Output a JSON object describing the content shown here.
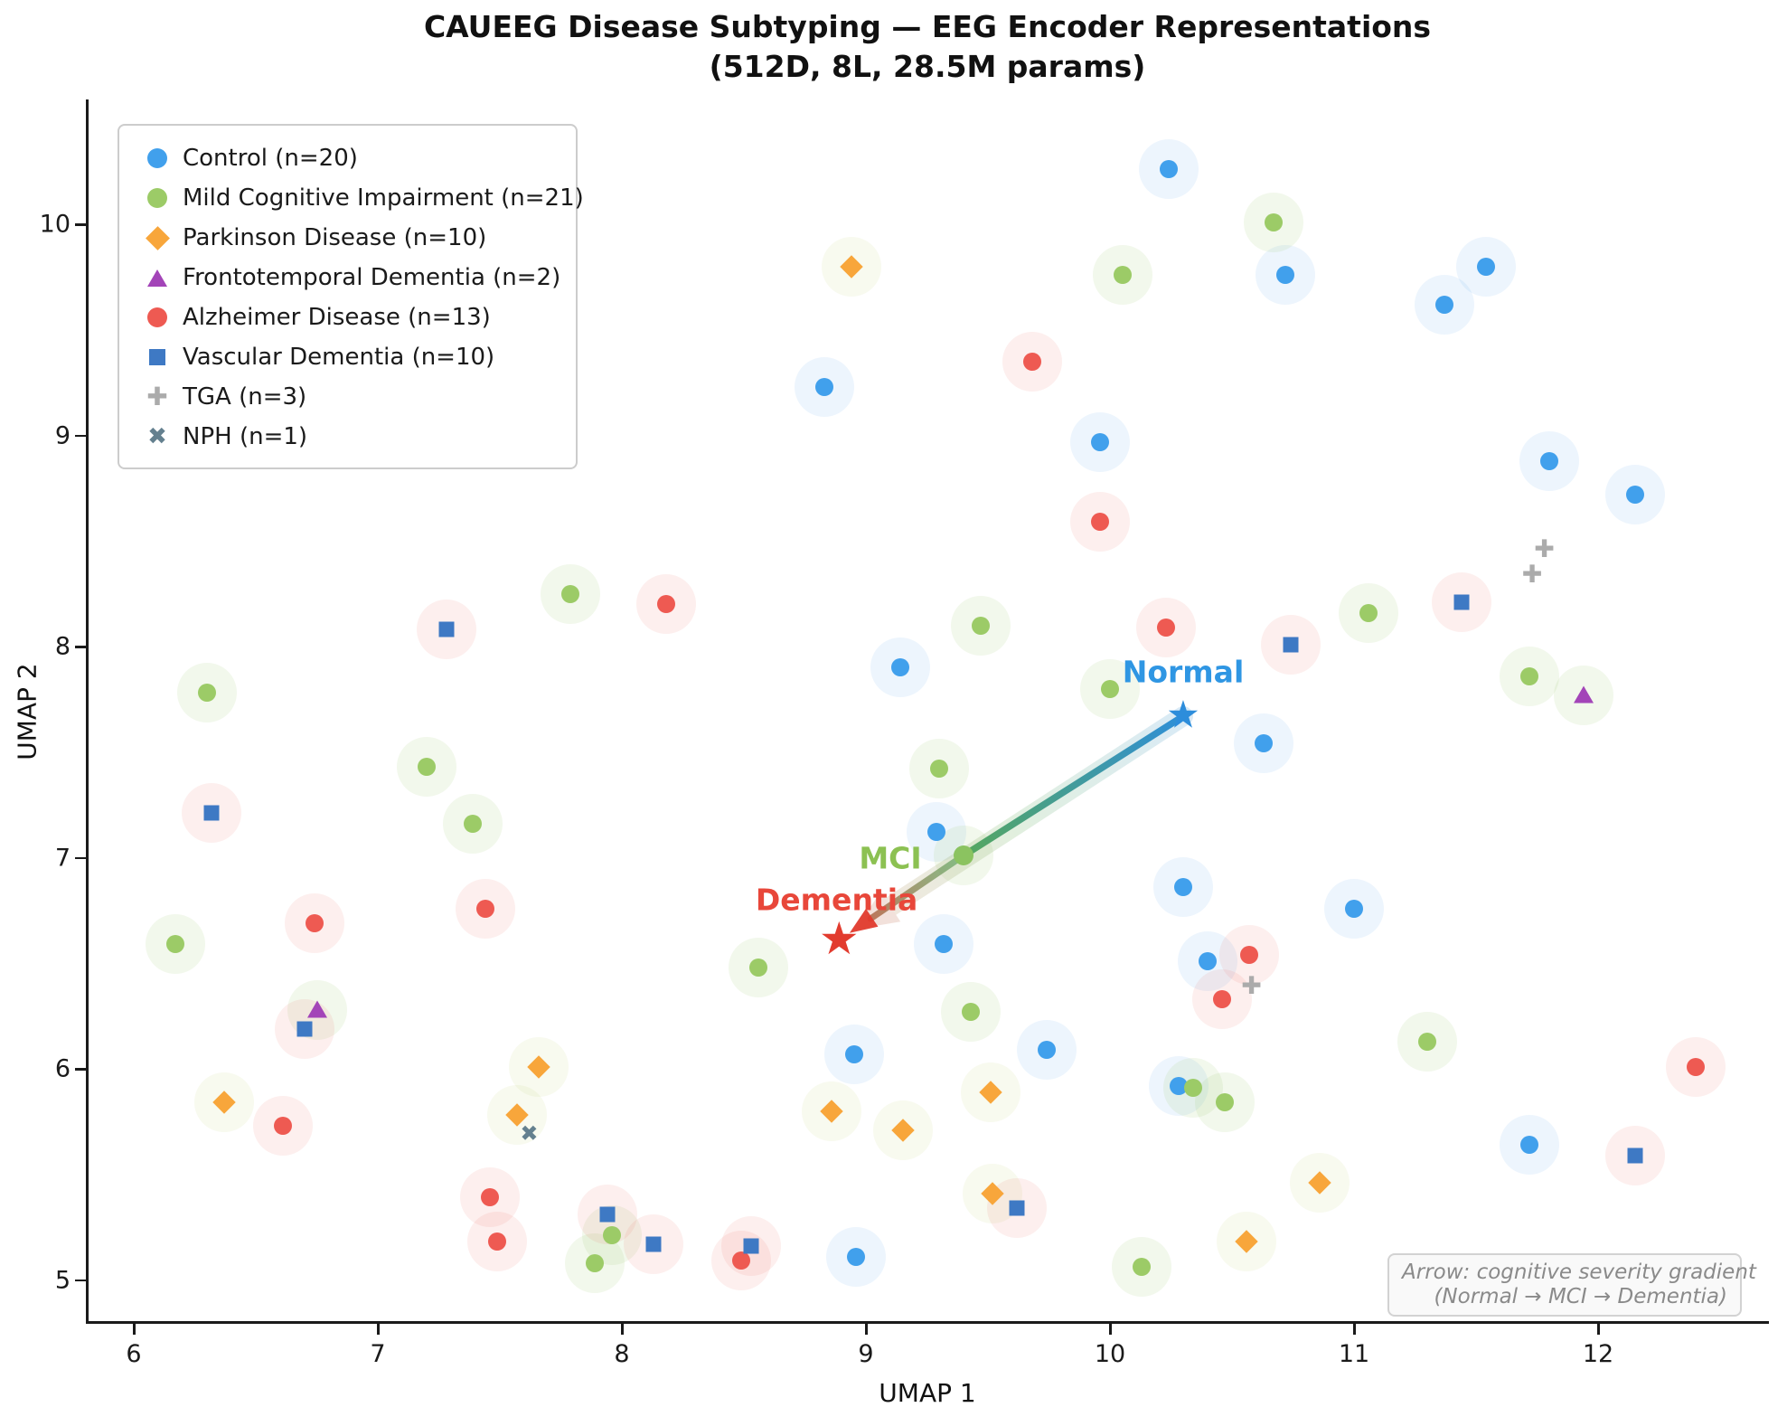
{
  "chart_data": {
    "type": "scatter",
    "title": "CAUEEG Disease Subtyping — EEG Encoder Representations",
    "subtitle": "(512D, 8L, 28.5M params)",
    "xlabel": "UMAP 1",
    "ylabel": "UMAP 2",
    "xlim": [
      5.8,
      12.69
    ],
    "ylim": [
      4.77,
      10.59
    ],
    "x_ticks": [
      6,
      7,
      8,
      9,
      10,
      11,
      12
    ],
    "y_ticks": [
      5,
      6,
      7,
      8,
      9,
      10
    ],
    "grid": false,
    "legend_position": "upper left",
    "series": [
      {
        "name": "Control (n=20)",
        "marker": "circle",
        "color": "#41a0ec",
        "halo": "rgba(80,160,235,0.10)",
        "points": [
          [
            10.24,
            10.26
          ],
          [
            10.72,
            9.76
          ],
          [
            11.54,
            9.8
          ],
          [
            11.37,
            9.62
          ],
          [
            8.83,
            9.23
          ],
          [
            9.96,
            8.97
          ],
          [
            11.8,
            8.88
          ],
          [
            12.15,
            8.72
          ],
          [
            9.14,
            7.9
          ],
          [
            10.63,
            7.54
          ],
          [
            9.29,
            7.12
          ],
          [
            10.3,
            6.86
          ],
          [
            11.0,
            6.76
          ],
          [
            9.32,
            6.59
          ],
          [
            10.4,
            6.51
          ],
          [
            9.74,
            6.09
          ],
          [
            8.95,
            6.07
          ],
          [
            10.28,
            5.92
          ],
          [
            11.72,
            5.64
          ],
          [
            8.96,
            5.11
          ]
        ]
      },
      {
        "name": "Mild Cognitive Impairment (n=21)",
        "marker": "circle",
        "color": "#9ccb67",
        "halo": "rgba(150,200,100,0.12)",
        "points": [
          [
            10.67,
            10.01
          ],
          [
            10.05,
            9.76
          ],
          [
            7.79,
            8.25
          ],
          [
            9.47,
            8.1
          ],
          [
            11.06,
            8.16
          ],
          [
            10.0,
            7.8
          ],
          [
            11.72,
            7.86
          ],
          [
            6.3,
            7.78
          ],
          [
            7.2,
            7.43
          ],
          [
            9.3,
            7.42
          ],
          [
            7.39,
            7.16
          ],
          [
            9.4,
            7.01
          ],
          [
            6.17,
            6.59
          ],
          [
            8.56,
            6.48
          ],
          [
            9.43,
            6.27
          ],
          [
            11.3,
            6.13
          ],
          [
            10.34,
            5.91
          ],
          [
            10.47,
            5.84
          ],
          [
            7.96,
            5.21
          ],
          [
            7.89,
            5.08
          ],
          [
            10.13,
            5.06
          ]
        ]
      },
      {
        "name": "Parkinson Disease (n=10)",
        "marker": "diamond",
        "color": "#f8a63b",
        "halo": "rgba(200,210,120,0.12)",
        "points": [
          [
            8.94,
            9.8
          ],
          [
            7.66,
            6.01
          ],
          [
            9.51,
            5.89
          ],
          [
            6.37,
            5.84
          ],
          [
            8.86,
            5.8
          ],
          [
            7.57,
            5.78
          ],
          [
            9.15,
            5.71
          ],
          [
            10.86,
            5.46
          ],
          [
            9.52,
            5.41
          ],
          [
            10.56,
            5.18
          ]
        ]
      },
      {
        "name": "Frontotemporal Dementia (n=2)",
        "marker": "triangle",
        "color": "#a344b8",
        "halo": "rgba(150,200,100,0.12)",
        "points": [
          [
            11.94,
            7.77
          ],
          [
            6.75,
            6.28
          ]
        ]
      },
      {
        "name": "Alzheimer Disease (n=13)",
        "marker": "circle",
        "color": "#ee5a52",
        "halo": "rgba(238,96,88,0.10)",
        "points": [
          [
            9.68,
            9.35
          ],
          [
            9.96,
            8.59
          ],
          [
            8.18,
            8.2
          ],
          [
            10.23,
            8.09
          ],
          [
            7.44,
            6.76
          ],
          [
            6.74,
            6.69
          ],
          [
            10.57,
            6.54
          ],
          [
            10.46,
            6.33
          ],
          [
            12.4,
            6.01
          ],
          [
            6.61,
            5.73
          ],
          [
            7.46,
            5.39
          ],
          [
            7.49,
            5.18
          ],
          [
            8.49,
            5.09
          ]
        ]
      },
      {
        "name": "Vascular Dementia (n=10)",
        "marker": "square",
        "color": "#3e79c4",
        "halo": "rgba(238,96,88,0.10)",
        "points": [
          [
            11.44,
            8.21
          ],
          [
            7.28,
            8.08
          ],
          [
            10.74,
            8.01
          ],
          [
            6.32,
            7.21
          ],
          [
            6.7,
            6.19
          ],
          [
            12.15,
            5.59
          ],
          [
            9.62,
            5.34
          ],
          [
            7.94,
            5.31
          ],
          [
            8.13,
            5.17
          ],
          [
            8.53,
            5.16
          ]
        ]
      },
      {
        "name": "TGA (n=3)",
        "marker": "plus",
        "color": "#ababab",
        "halo": null,
        "points": [
          [
            11.78,
            8.46
          ],
          [
            11.73,
            8.34
          ],
          [
            10.58,
            6.39
          ]
        ]
      },
      {
        "name": "NPH (n=1)",
        "marker": "x",
        "color": "#64808f",
        "halo": null,
        "points": [
          [
            7.62,
            5.69
          ]
        ]
      }
    ],
    "severity_arrow": {
      "normal": {
        "label": "Normal",
        "label_color": "#2f96e3",
        "star_color": "#2d8ddb",
        "at": [
          10.3,
          7.67
        ],
        "label_at": [
          10.3,
          7.88
        ]
      },
      "mci": {
        "label": "MCI",
        "label_color": "#8cc152",
        "dot_color": "#8bc360",
        "at": [
          9.4,
          7.01
        ],
        "label_at": [
          9.1,
          7.0
        ]
      },
      "dementia": {
        "label": "Dementia",
        "label_color": "#e8473a",
        "star_color": "#e23b2e",
        "at": [
          8.89,
          6.61
        ],
        "label_at": [
          8.88,
          6.8
        ]
      }
    },
    "annotation": {
      "line1": "Arrow: cognitive severity gradient",
      "line2": "(Normal → MCI → Dementia)"
    }
  }
}
